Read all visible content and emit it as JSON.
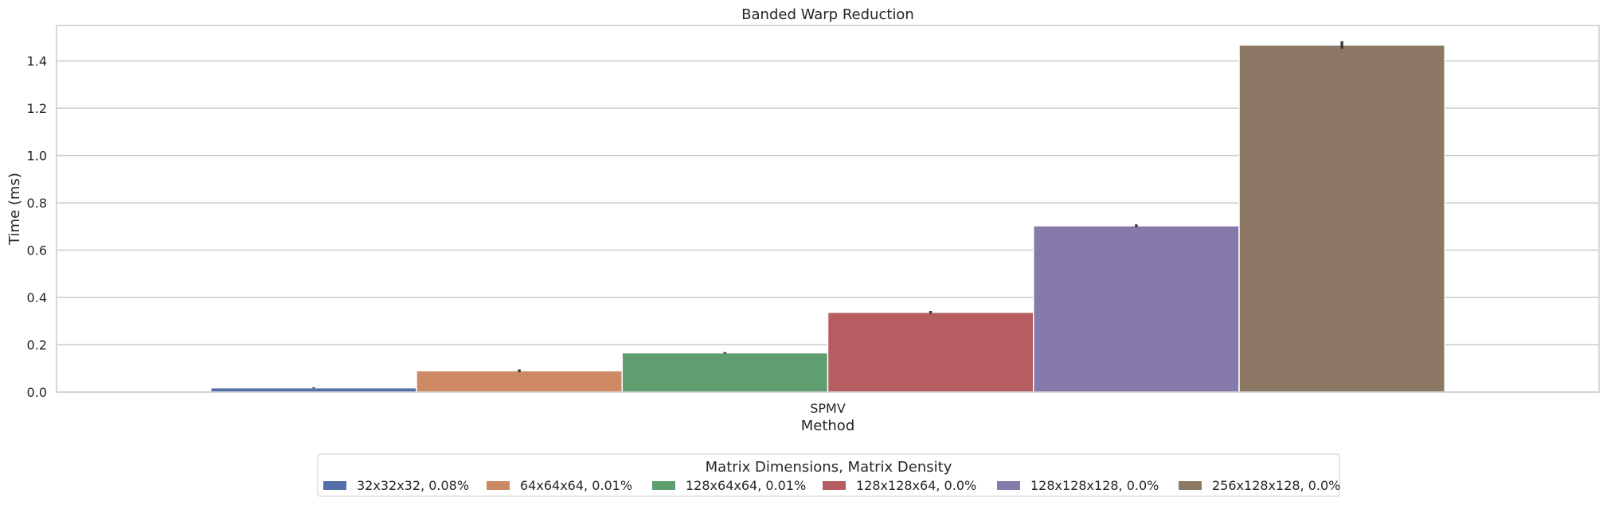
{
  "chart_data": {
    "type": "bar",
    "title": "Banded Warp Reduction",
    "xlabel": "Method",
    "ylabel": "Time (ms)",
    "categories": [
      "SPMV"
    ],
    "ylim": [
      0,
      1.55
    ],
    "yticks": [
      0.0,
      0.2,
      0.4,
      0.6,
      0.8,
      1.0,
      1.2,
      1.4
    ],
    "ytick_labels": [
      "0.0",
      "0.2",
      "0.4",
      "0.6",
      "0.8",
      "1.0",
      "1.2",
      "1.4"
    ],
    "grid": "horizontal",
    "legend": {
      "title": "Matrix Dimensions, Matrix Density",
      "placement": "bottom-center"
    },
    "series": [
      {
        "name": "32x32x32, 0.08%",
        "color": "#5470a8",
        "values": [
          0.018
        ],
        "error": [
          0.002
        ]
      },
      {
        "name": "64x64x64, 0.01%",
        "color": "#cc8963",
        "values": [
          0.09
        ],
        "error": [
          0.006
        ]
      },
      {
        "name": "128x64x64, 0.01%",
        "color": "#5f9e6e",
        "values": [
          0.166
        ],
        "error": [
          0.003
        ]
      },
      {
        "name": "128x128x64, 0.0%",
        "color": "#b55d60",
        "values": [
          0.337
        ],
        "error": [
          0.006
        ]
      },
      {
        "name": "128x128x128, 0.0%",
        "color": "#857aab",
        "values": [
          0.703
        ],
        "error": [
          0.006
        ]
      },
      {
        "name": "256x128x128, 0.0%",
        "color": "#8d7866",
        "values": [
          1.467
        ],
        "error": [
          0.016
        ]
      }
    ]
  }
}
